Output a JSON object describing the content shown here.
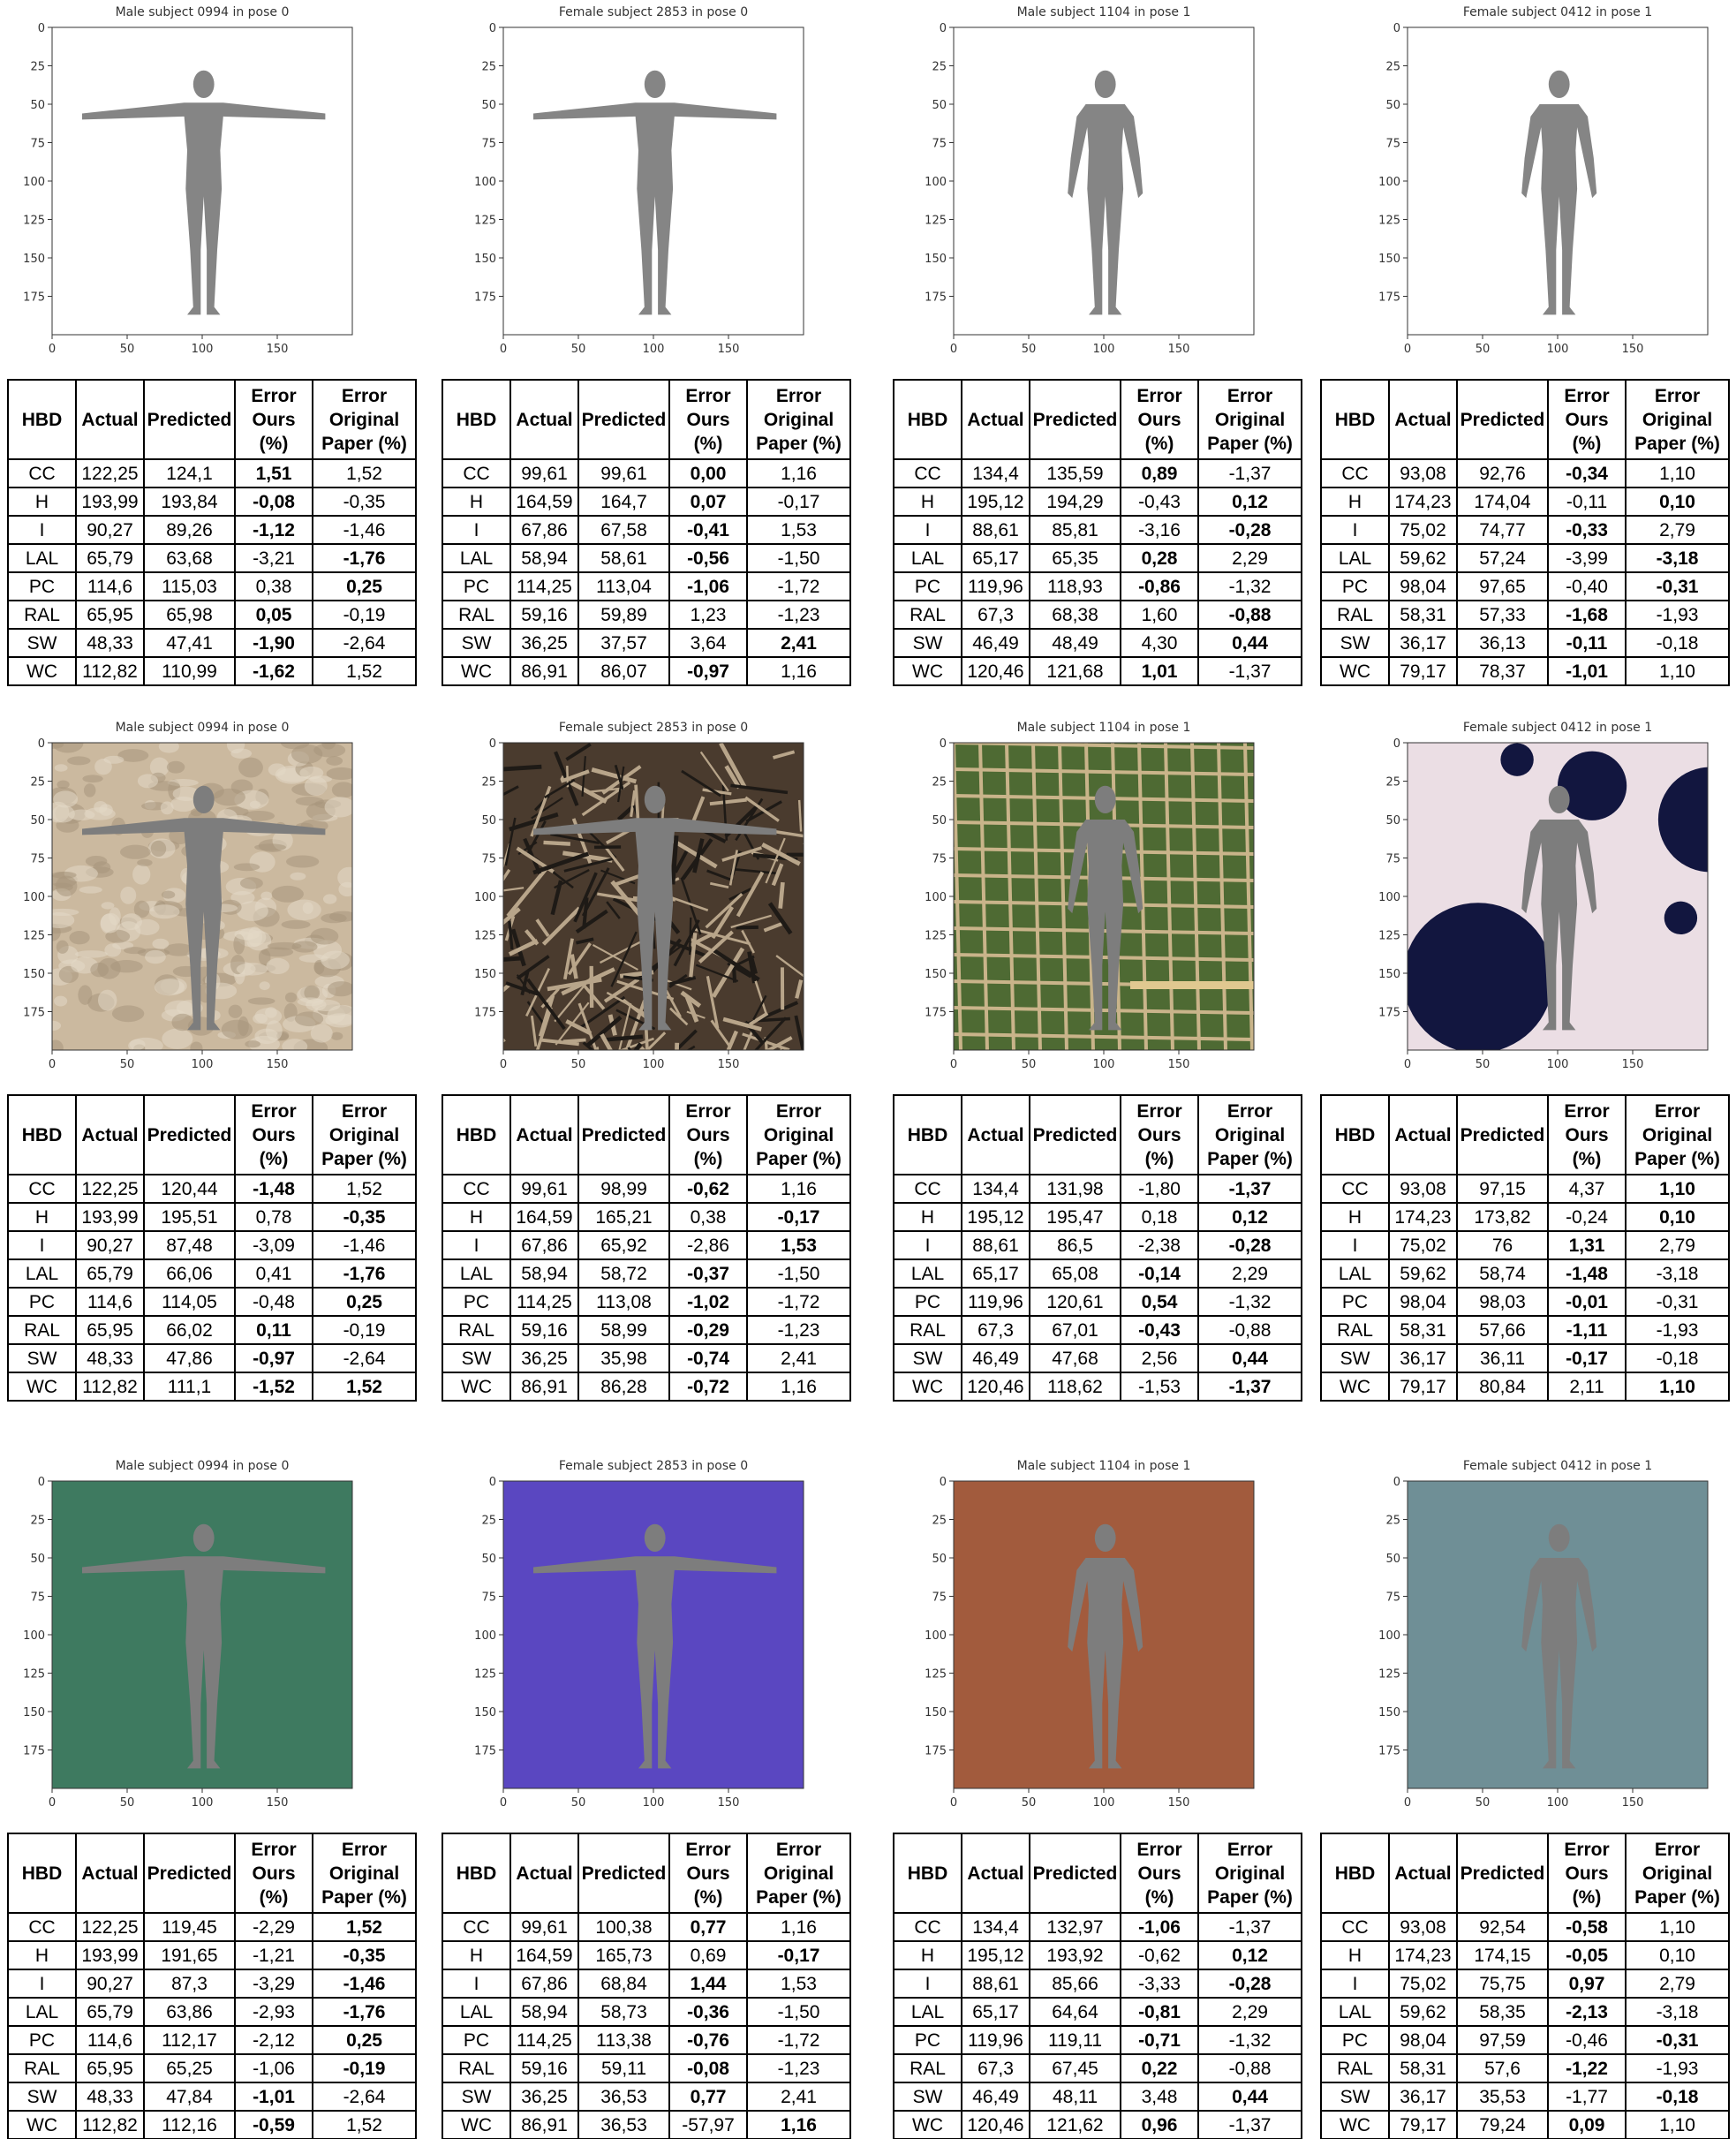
{
  "axes": {
    "yticks": [
      0,
      25,
      50,
      75,
      100,
      125,
      150,
      175
    ],
    "xticks": [
      0,
      50,
      100,
      150
    ]
  },
  "table": {
    "headers": [
      [
        "HBD"
      ],
      [
        "Actual"
      ],
      [
        "Predicted"
      ],
      [
        "Error",
        "Ours",
        "(%)"
      ],
      [
        "Error",
        "Original",
        "Paper (%)"
      ]
    ],
    "row_labels": [
      "CC",
      "H",
      "I",
      "LAL",
      "PC",
      "RAL",
      "SW",
      "WC"
    ]
  },
  "panels": [
    {
      "title": "Male subject 0994 in pose 0",
      "background": "#ffffff",
      "rows": [
        [
          "122,25",
          "124,1",
          {
            "text": "1,51",
            "bold": true
          },
          "1,52"
        ],
        [
          "193,99",
          "193,84",
          {
            "text": "-0,08",
            "bold": true
          },
          "-0,35"
        ],
        [
          "90,27",
          "89,26",
          {
            "text": "-1,12",
            "bold": true
          },
          "-1,46"
        ],
        [
          "65,79",
          "63,68",
          "-3,21",
          {
            "text": "-1,76",
            "bold": true
          }
        ],
        [
          "114,6",
          "115,03",
          "0,38",
          {
            "text": "0,25",
            "bold": true
          }
        ],
        [
          "65,95",
          "65,98",
          {
            "text": "0,05",
            "bold": true
          },
          "-0,19"
        ],
        [
          "48,33",
          "47,41",
          {
            "text": "-1,90",
            "bold": true
          },
          "-2,64"
        ],
        [
          "112,82",
          "110,99",
          {
            "text": "-1,62",
            "bold": true
          },
          "1,52"
        ]
      ]
    },
    {
      "title": "Female subject 2853 in pose 0",
      "background": "#ffffff",
      "rows": [
        [
          "99,61",
          "99,61",
          {
            "text": "0,00",
            "bold": true
          },
          "1,16"
        ],
        [
          "164,59",
          "164,7",
          {
            "text": "0,07",
            "bold": true
          },
          "-0,17"
        ],
        [
          "67,86",
          "67,58",
          {
            "text": "-0,41",
            "bold": true
          },
          "1,53"
        ],
        [
          "58,94",
          "58,61",
          {
            "text": "-0,56",
            "bold": true
          },
          "-1,50"
        ],
        [
          "114,25",
          "113,04",
          {
            "text": "-1,06",
            "bold": true
          },
          "-1,72"
        ],
        [
          "59,16",
          "59,89",
          "1,23",
          "-1,23"
        ],
        [
          "36,25",
          "37,57",
          "3,64",
          {
            "text": "2,41",
            "bold": true
          }
        ],
        [
          "86,91",
          "86,07",
          {
            "text": "-0,97",
            "bold": true
          },
          "1,16"
        ]
      ]
    },
    {
      "title": "Male subject 1104 in pose 1",
      "background": "#ffffff",
      "rows": [
        [
          "134,4",
          "135,59",
          {
            "text": "0,89",
            "bold": true
          },
          "-1,37"
        ],
        [
          "195,12",
          "194,29",
          "-0,43",
          {
            "text": "0,12",
            "bold": true
          }
        ],
        [
          "88,61",
          "85,81",
          "-3,16",
          {
            "text": "-0,28",
            "bold": true
          }
        ],
        [
          "65,17",
          "65,35",
          {
            "text": "0,28",
            "bold": true
          },
          "2,29"
        ],
        [
          "119,96",
          "118,93",
          {
            "text": "-0,86",
            "bold": true
          },
          "-1,32"
        ],
        [
          "67,3",
          "68,38",
          "1,60",
          {
            "text": "-0,88",
            "bold": true
          }
        ],
        [
          "46,49",
          "48,49",
          "4,30",
          {
            "text": "0,44",
            "bold": true
          }
        ],
        [
          "120,46",
          "121,68",
          {
            "text": "1,01",
            "bold": true
          },
          "-1,37"
        ]
      ]
    },
    {
      "title": "Female subject 0412 in pose 1",
      "background": "#ffffff",
      "rows": [
        [
          "93,08",
          "92,76",
          {
            "text": "-0,34",
            "bold": true
          },
          "1,10"
        ],
        [
          "174,23",
          "174,04",
          "-0,11",
          {
            "text": "0,10",
            "bold": true
          }
        ],
        [
          "75,02",
          "74,77",
          {
            "text": "-0,33",
            "bold": true
          },
          "2,79"
        ],
        [
          "59,62",
          "57,24",
          "-3,99",
          {
            "text": "-3,18",
            "bold": true
          }
        ],
        [
          "98,04",
          "97,65",
          "-0,40",
          {
            "text": "-0,31",
            "bold": true
          }
        ],
        [
          "58,31",
          "57,33",
          {
            "text": "-1,68",
            "bold": true
          },
          "-1,93"
        ],
        [
          "36,17",
          "36,13",
          {
            "text": "-0,11",
            "bold": true
          },
          "-0,18"
        ],
        [
          "79,17",
          "78,37",
          {
            "text": "-1,01",
            "bold": true
          },
          "1,10"
        ]
      ]
    },
    {
      "title": "Male subject 0994 in pose 0",
      "background": "#cbb99f",
      "rows": [
        [
          "122,25",
          "120,44",
          {
            "text": "-1,48",
            "bold": true
          },
          "1,52"
        ],
        [
          "193,99",
          "195,51",
          "0,78",
          {
            "text": "-0,35",
            "bold": true
          }
        ],
        [
          "90,27",
          "87,48",
          "-3,09",
          "-1,46"
        ],
        [
          "65,79",
          "66,06",
          "0,41",
          {
            "text": "-1,76",
            "bold": true
          }
        ],
        [
          "114,6",
          "114,05",
          "-0,48",
          {
            "text": "0,25",
            "bold": true
          }
        ],
        [
          "65,95",
          "66,02",
          {
            "text": "0,11",
            "bold": true
          },
          "-0,19"
        ],
        [
          "48,33",
          "47,86",
          {
            "text": "-0,97",
            "bold": true
          },
          "-2,64"
        ],
        [
          "112,82",
          "111,1",
          {
            "text": "-1,52",
            "bold": true
          },
          {
            "text": "1,52",
            "bold": true
          }
        ]
      ]
    },
    {
      "title": "Female subject 2853 in pose 0",
      "background": "#4a3b2e",
      "rows": [
        [
          "99,61",
          "98,99",
          {
            "text": "-0,62",
            "bold": true
          },
          "1,16"
        ],
        [
          "164,59",
          "165,21",
          "0,38",
          {
            "text": "-0,17",
            "bold": true
          }
        ],
        [
          "67,86",
          "65,92",
          "-2,86",
          {
            "text": "1,53",
            "bold": true
          }
        ],
        [
          "58,94",
          "58,72",
          {
            "text": "-0,37",
            "bold": true
          },
          "-1,50"
        ],
        [
          "114,25",
          "113,08",
          {
            "text": "-1,02",
            "bold": true
          },
          "-1,72"
        ],
        [
          "59,16",
          "58,99",
          {
            "text": "-0,29",
            "bold": true
          },
          "-1,23"
        ],
        [
          "36,25",
          "35,98",
          {
            "text": "-0,74",
            "bold": true
          },
          "2,41"
        ],
        [
          "86,91",
          "86,28",
          {
            "text": "-0,72",
            "bold": true
          },
          "1,16"
        ]
      ]
    },
    {
      "title": "Male subject 1104 in pose 1",
      "background": "#4e6a33",
      "rows": [
        [
          "134,4",
          "131,98",
          "-1,80",
          {
            "text": "-1,37",
            "bold": true
          }
        ],
        [
          "195,12",
          "195,47",
          "0,18",
          {
            "text": "0,12",
            "bold": true
          }
        ],
        [
          "88,61",
          "86,5",
          "-2,38",
          {
            "text": "-0,28",
            "bold": true
          }
        ],
        [
          "65,17",
          "65,08",
          {
            "text": "-0,14",
            "bold": true
          },
          "2,29"
        ],
        [
          "119,96",
          "120,61",
          {
            "text": "0,54",
            "bold": true
          },
          "-1,32"
        ],
        [
          "67,3",
          "67,01",
          {
            "text": "-0,43",
            "bold": true
          },
          "-0,88"
        ],
        [
          "46,49",
          "47,68",
          "2,56",
          {
            "text": "0,44",
            "bold": true
          }
        ],
        [
          "120,46",
          "118,62",
          "-1,53",
          {
            "text": "-1,37",
            "bold": true
          }
        ]
      ]
    },
    {
      "title": "Female subject 0412 in pose 1",
      "background": "#ebdee4",
      "rows": [
        [
          "93,08",
          "97,15",
          "4,37",
          {
            "text": "1,10",
            "bold": true
          }
        ],
        [
          "174,23",
          "173,82",
          "-0,24",
          {
            "text": "0,10",
            "bold": true
          }
        ],
        [
          "75,02",
          "76",
          {
            "text": "1,31",
            "bold": true
          },
          "2,79"
        ],
        [
          "59,62",
          "58,74",
          {
            "text": "-1,48",
            "bold": true
          },
          "-3,18"
        ],
        [
          "98,04",
          "98,03",
          {
            "text": "-0,01",
            "bold": true
          },
          "-0,31"
        ],
        [
          "58,31",
          "57,66",
          {
            "text": "-1,11",
            "bold": true
          },
          "-1,93"
        ],
        [
          "36,17",
          "36,11",
          {
            "text": "-0,17",
            "bold": true
          },
          "-0,18"
        ],
        [
          "79,17",
          "80,84",
          "2,11",
          {
            "text": "1,10",
            "bold": true
          }
        ]
      ]
    },
    {
      "title": "Male subject 0994 in pose 0",
      "background": "#3e7a60",
      "rows": [
        [
          "122,25",
          "119,45",
          "-2,29",
          {
            "text": "1,52",
            "bold": true
          }
        ],
        [
          "193,99",
          "191,65",
          "-1,21",
          {
            "text": "-0,35",
            "bold": true
          }
        ],
        [
          "90,27",
          "87,3",
          "-3,29",
          {
            "text": "-1,46",
            "bold": true
          }
        ],
        [
          "65,79",
          "63,86",
          "-2,93",
          {
            "text": "-1,76",
            "bold": true
          }
        ],
        [
          "114,6",
          "112,17",
          "-2,12",
          {
            "text": "0,25",
            "bold": true
          }
        ],
        [
          "65,95",
          "65,25",
          "-1,06",
          {
            "text": "-0,19",
            "bold": true
          }
        ],
        [
          "48,33",
          "47,84",
          {
            "text": "-1,01",
            "bold": true
          },
          "-2,64"
        ],
        [
          "112,82",
          "112,16",
          {
            "text": "-0,59",
            "bold": true
          },
          "1,52"
        ]
      ]
    },
    {
      "title": "Female subject 2853 in pose 0",
      "background": "#5a47c1",
      "rows": [
        [
          "99,61",
          "100,38",
          {
            "text": "0,77",
            "bold": true
          },
          "1,16"
        ],
        [
          "164,59",
          "165,73",
          "0,69",
          {
            "text": "-0,17",
            "bold": true
          }
        ],
        [
          "67,86",
          "68,84",
          {
            "text": "1,44",
            "bold": true
          },
          "1,53"
        ],
        [
          "58,94",
          "58,73",
          {
            "text": "-0,36",
            "bold": true
          },
          "-1,50"
        ],
        [
          "114,25",
          "113,38",
          {
            "text": "-0,76",
            "bold": true
          },
          "-1,72"
        ],
        [
          "59,16",
          "59,11",
          {
            "text": "-0,08",
            "bold": true
          },
          "-1,23"
        ],
        [
          "36,25",
          "36,53",
          {
            "text": "0,77",
            "bold": true
          },
          "2,41"
        ],
        [
          "86,91",
          "36,53",
          "-57,97",
          {
            "text": "1,16",
            "bold": true
          }
        ]
      ]
    },
    {
      "title": "Male subject 1104 in pose 1",
      "background": "#a25b3d",
      "rows": [
        [
          "134,4",
          "132,97",
          {
            "text": "-1,06",
            "bold": true
          },
          "-1,37"
        ],
        [
          "195,12",
          "193,92",
          "-0,62",
          {
            "text": "0,12",
            "bold": true
          }
        ],
        [
          "88,61",
          "85,66",
          "-3,33",
          {
            "text": "-0,28",
            "bold": true
          }
        ],
        [
          "65,17",
          "64,64",
          {
            "text": "-0,81",
            "bold": true
          },
          "2,29"
        ],
        [
          "119,96",
          "119,11",
          {
            "text": "-0,71",
            "bold": true
          },
          "-1,32"
        ],
        [
          "67,3",
          "67,45",
          {
            "text": "0,22",
            "bold": true
          },
          "-0,88"
        ],
        [
          "46,49",
          "48,11",
          "3,48",
          {
            "text": "0,44",
            "bold": true
          }
        ],
        [
          "120,46",
          "121,62",
          {
            "text": "0,96",
            "bold": true
          },
          "-1,37"
        ]
      ]
    },
    {
      "title": "Female subject 0412 in pose 1",
      "background": "#6f8f96",
      "rows": [
        [
          "93,08",
          "92,54",
          {
            "text": "-0,58",
            "bold": true
          },
          "1,10"
        ],
        [
          "174,23",
          "174,15",
          {
            "text": "-0,05",
            "bold": true
          },
          "0,10"
        ],
        [
          "75,02",
          "75,75",
          {
            "text": "0,97",
            "bold": true
          },
          "2,79"
        ],
        [
          "59,62",
          "58,35",
          {
            "text": "-2,13",
            "bold": true
          },
          "-3,18"
        ],
        [
          "98,04",
          "97,59",
          "-0,46",
          {
            "text": "-0,31",
            "bold": true
          }
        ],
        [
          "58,31",
          "57,6",
          {
            "text": "-1,22",
            "bold": true
          },
          "-1,93"
        ],
        [
          "36,17",
          "35,53",
          "-1,77",
          {
            "text": "-0,18",
            "bold": true
          }
        ],
        [
          "79,17",
          "79,24",
          {
            "text": "0,09",
            "bold": true
          },
          "1,10"
        ]
      ]
    }
  ]
}
